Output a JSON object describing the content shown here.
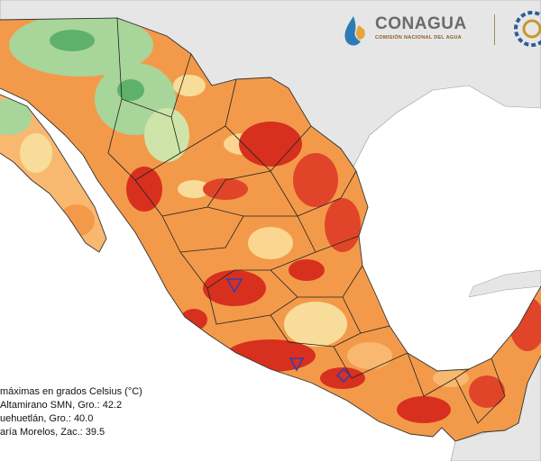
{
  "logo": {
    "name": "CONAGUA",
    "subtitle": "COMISIÓN NACIONAL DEL AGUA"
  },
  "legend": {
    "title": "máximas en grados Celsius (°C)",
    "entries": [
      "Altamirano SMN, Gro.: 42.2",
      "uehuetlán, Gro.: 40.0",
      "aría Morelos, Zac.: 39.5"
    ]
  },
  "colors": {
    "sea": "#ffffff",
    "land_outside": "#e6e6e6",
    "hot_red": "#d7301f",
    "hot_orange": "#f07830",
    "warm_orange": "#f9a65a",
    "mild_yellow": "#f8dd9a",
    "cool_green": "#a8d59a",
    "deep_green": "#5fb06a",
    "marker": "#3b3bb0"
  },
  "icons": [
    "conagua-water-drop-icon",
    "semarnat-seal-icon",
    "max-temperature-triangle-icon",
    "max-temperature-diamond-icon"
  ]
}
